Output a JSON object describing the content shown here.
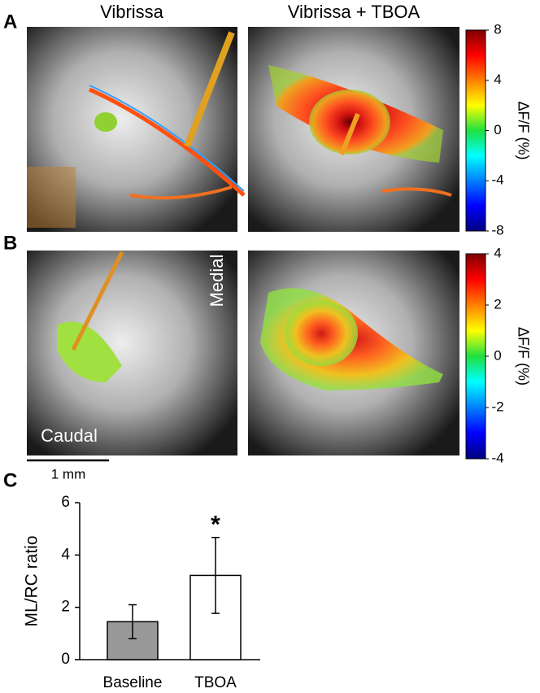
{
  "column_titles": [
    "Vibrissa",
    "Vibrissa + TBOA"
  ],
  "panel_labels": [
    "A",
    "B",
    "C"
  ],
  "image_labels": {
    "medial": "Medial",
    "caudal": "Caudal"
  },
  "scale_bar": "1 mm",
  "colorbars": [
    {
      "label": "ΔF/F (%)",
      "ylim": [
        -8,
        8
      ],
      "yticks": [
        -8,
        -4,
        0,
        4,
        8
      ]
    },
    {
      "label": "ΔF/F (%)",
      "ylim": [
        -4,
        4
      ],
      "yticks": [
        -4,
        -2,
        0,
        2,
        4
      ]
    }
  ],
  "chart_data": {
    "type": "bar",
    "ylabel": "ML/RC ratio",
    "categories": [
      "Baseline",
      "TBOA"
    ],
    "values": [
      1.45,
      3.22
    ],
    "errors": [
      0.65,
      1.45
    ],
    "colors": [
      "#999999",
      "#ffffff"
    ],
    "annotation": "*",
    "ylim": [
      0,
      6
    ],
    "yticks": [
      0,
      2,
      4,
      6
    ]
  }
}
